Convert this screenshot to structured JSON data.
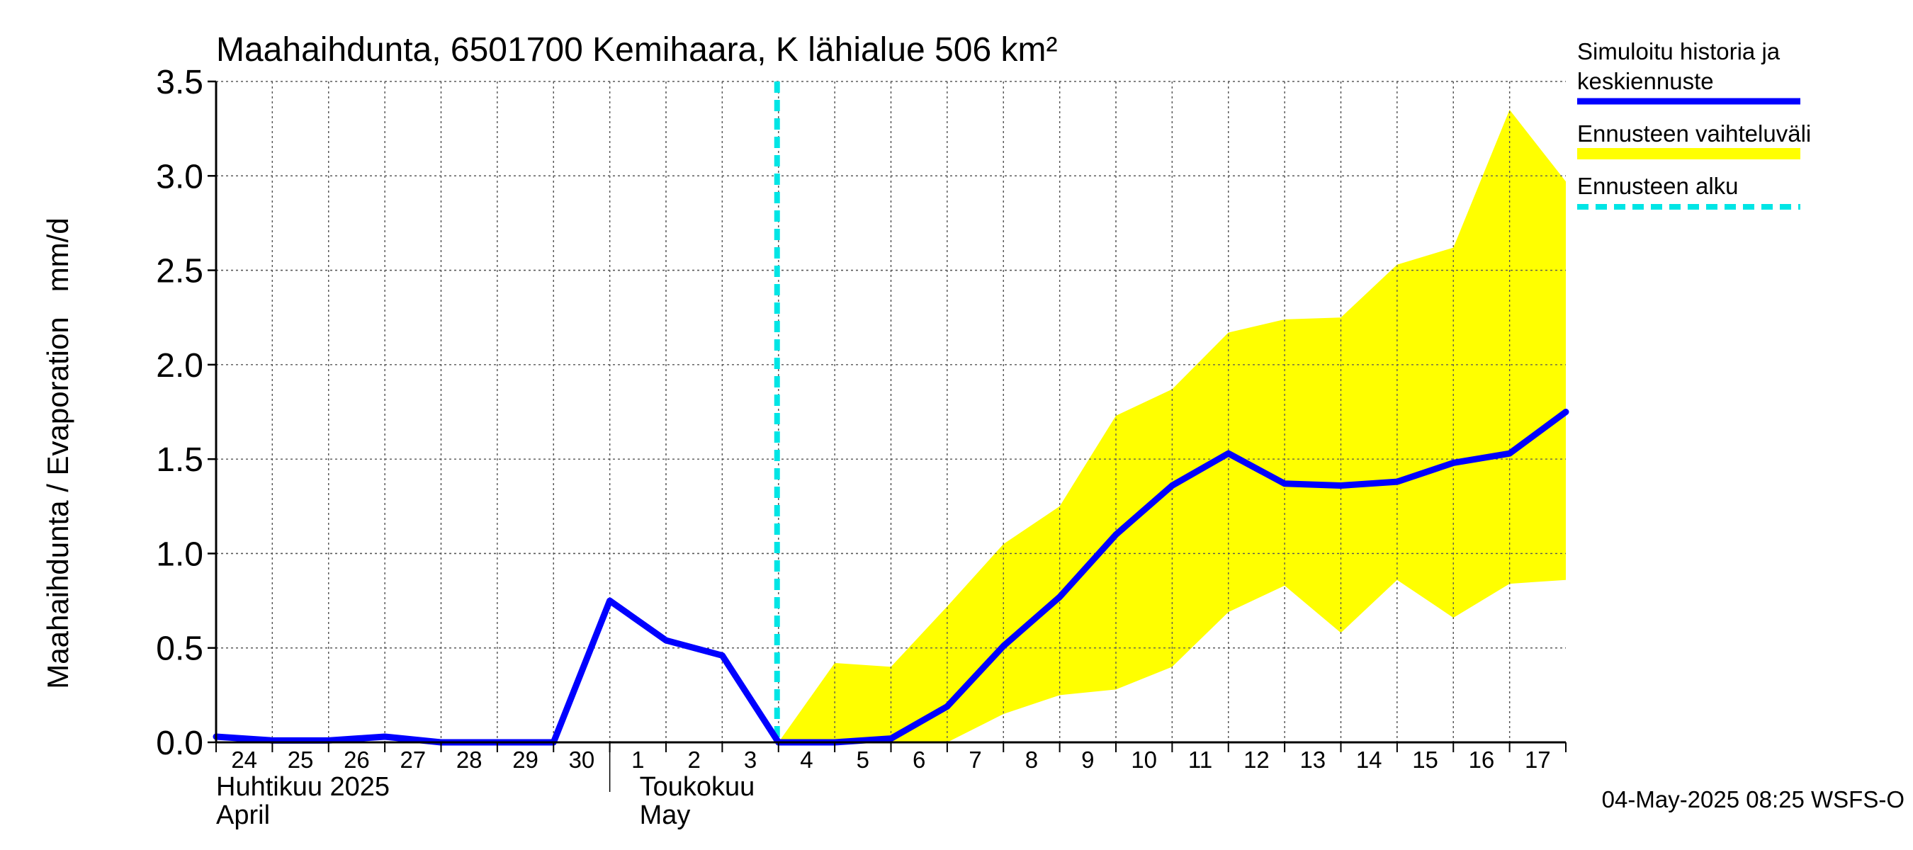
{
  "chart_data": {
    "type": "area",
    "title": "Maahaihdunta, 6501700 Kemihaara, K lähialue 506 km²",
    "ylabel": "Maahaihdunta / Evaporation   mm/d",
    "ylim": [
      0,
      3.5
    ],
    "yticks": [
      "0.0",
      "0.5",
      "1.0",
      "1.5",
      "2.0",
      "2.5",
      "3.0",
      "3.5"
    ],
    "grid": true,
    "legend_position": "right",
    "x_day_labels": [
      "24",
      "25",
      "26",
      "27",
      "28",
      "29",
      "30",
      "1",
      "2",
      "3",
      "4",
      "5",
      "6",
      "7",
      "8",
      "9",
      "10",
      "11",
      "12",
      "13",
      "14",
      "15",
      "16",
      "17"
    ],
    "month_labels": [
      {
        "fi": "Huhtikuu  2025",
        "en": "April"
      },
      {
        "fi": "Toukokuu",
        "en": "May"
      }
    ],
    "x": [
      "2025-04-24",
      "2025-04-25",
      "2025-04-26",
      "2025-04-27",
      "2025-04-28",
      "2025-04-29",
      "2025-04-30",
      "2025-05-01",
      "2025-05-02",
      "2025-05-03",
      "2025-05-04",
      "2025-05-05",
      "2025-05-06",
      "2025-05-07",
      "2025-05-08",
      "2025-05-09",
      "2025-05-10",
      "2025-05-11",
      "2025-05-12",
      "2025-05-13",
      "2025-05-14",
      "2025-05-15",
      "2025-05-16",
      "2025-05-17",
      "2025-05-18"
    ],
    "forecast_start": "2025-05-04",
    "series": [
      {
        "name": "Simuloitu historia ja keskiennuste",
        "color": "#0000ff",
        "values": [
          0.03,
          0.01,
          0.01,
          0.03,
          0.0,
          0.0,
          0.0,
          0.75,
          0.54,
          0.46,
          0.0,
          0.0,
          0.02,
          0.19,
          0.51,
          0.77,
          1.1,
          1.36,
          1.53,
          1.37,
          1.36,
          1.38,
          1.48,
          1.53,
          1.75
        ]
      },
      {
        "name": "Ennusteen vaihteluväli",
        "color": "#ffff00",
        "lower": [
          null,
          null,
          null,
          null,
          null,
          null,
          null,
          null,
          null,
          null,
          0.0,
          0.0,
          0.0,
          0.0,
          0.15,
          0.25,
          0.28,
          0.4,
          0.69,
          0.83,
          0.58,
          0.86,
          0.66,
          0.84,
          0.86
        ],
        "upper": [
          null,
          null,
          null,
          null,
          null,
          null,
          null,
          null,
          null,
          null,
          0.0,
          0.42,
          0.4,
          0.72,
          1.05,
          1.25,
          1.73,
          1.87,
          2.17,
          2.24,
          2.25,
          2.53,
          2.62,
          3.35,
          2.97
        ]
      },
      {
        "name": "Ennusteen alku",
        "color": "#00e5e5"
      }
    ],
    "legend": [
      {
        "text_lines": [
          "Simuloitu historia ja",
          "keskiennuste"
        ],
        "color": "#0000ff",
        "style": "solid"
      },
      {
        "text_lines": [
          "Ennusteen vaihteluväli"
        ],
        "color": "#ffff00",
        "style": "solid"
      },
      {
        "text_lines": [
          "Ennusteen alku"
        ],
        "color": "#00e5e5",
        "style": "dashed"
      }
    ],
    "footer": "04-May-2025 08:25 WSFS-O"
  }
}
